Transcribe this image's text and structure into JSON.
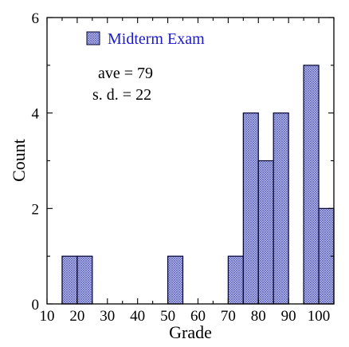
{
  "chart_data": {
    "type": "bar",
    "xlabel": "Grade",
    "ylabel": "Count",
    "xlim": [
      10,
      105
    ],
    "ylim": [
      0,
      6
    ],
    "bin_width": 5,
    "xticks": [
      10,
      20,
      30,
      40,
      50,
      60,
      70,
      80,
      90,
      100
    ],
    "yticks": [
      0,
      2,
      4,
      6
    ],
    "series": [
      {
        "name": "Midterm Exam",
        "bins": [
          15,
          20,
          50,
          70,
          75,
          80,
          85,
          95,
          100
        ],
        "values": [
          1,
          1,
          1,
          1,
          4,
          3,
          4,
          5,
          2
        ]
      }
    ],
    "annotations": [
      "ave = 79",
      "s. d. = 22"
    ],
    "legend_position": "top-left",
    "grid": false,
    "colors": {
      "bar_fill": "#9a9ee6",
      "bar_edge": "#000033",
      "legend_text": "#1a1ac8"
    }
  }
}
